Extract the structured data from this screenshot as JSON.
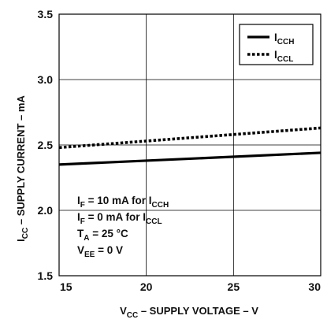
{
  "chart_data": {
    "type": "line",
    "title": "",
    "xlabel": {
      "main": "V",
      "sub": "CC",
      "rest": " – SUPPLY VOLTAGE – V"
    },
    "ylabel": {
      "main": "I",
      "sub": "CC",
      "rest": " – SUPPLY CURRENT – mA"
    },
    "xlim": [
      15,
      30
    ],
    "ylim": [
      1.5,
      3.5
    ],
    "xticks": [
      "15",
      "20",
      "25",
      "30"
    ],
    "yticks": [
      "1.5",
      "2.0",
      "2.5",
      "3.0",
      "3.5"
    ],
    "grid": true,
    "legend_position": "top-right",
    "series": [
      {
        "name": "I_CCH",
        "label_main": "I",
        "label_sub": "CCH",
        "style": "solid",
        "x": [
          15,
          30
        ],
        "y": [
          2.35,
          2.44
        ]
      },
      {
        "name": "I_CCL",
        "label_main": "I",
        "label_sub": "CCL",
        "style": "dotted",
        "x": [
          15,
          30
        ],
        "y": [
          2.48,
          2.63
        ]
      }
    ],
    "conditions": [
      {
        "parts": [
          {
            "t": "I"
          },
          {
            "t": "F",
            "sub": true
          },
          {
            "t": " = 10 mA for I"
          },
          {
            "t": "CCH",
            "sub": true
          }
        ]
      },
      {
        "parts": [
          {
            "t": "I"
          },
          {
            "t": "F",
            "sub": true
          },
          {
            "t": " = 0 mA for I"
          },
          {
            "t": "CCL",
            "sub": true
          }
        ]
      },
      {
        "parts": [
          {
            "t": "T"
          },
          {
            "t": "A",
            "sub": true
          },
          {
            "t": " = 25 °C"
          }
        ]
      },
      {
        "parts": [
          {
            "t": "V"
          },
          {
            "t": "EE",
            "sub": true
          },
          {
            "t": " = 0 V"
          }
        ]
      }
    ],
    "colors": {
      "line": "#000000",
      "grid": "#000000",
      "background": "#ffffff"
    }
  }
}
